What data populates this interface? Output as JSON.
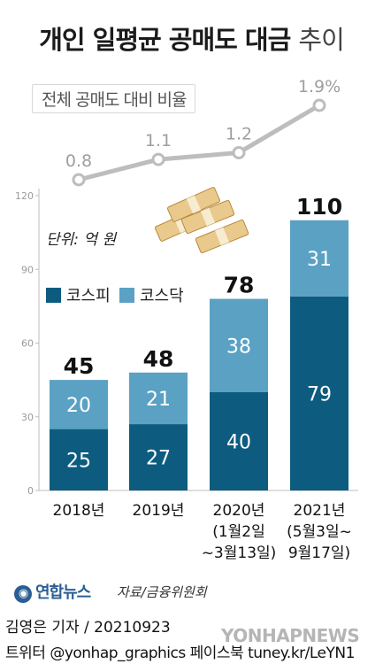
{
  "title": {
    "bold": "개인 일평균 공매도 대금",
    "light": "추이"
  },
  "ratio_label": "전체 공매도 대비 비율",
  "unit": "단위: 억 원",
  "source": "자료/금융위원회",
  "byline": "김영은 기자 / 20210923",
  "social": "트위터 @yonhap_graphics  페이스북 tuney.kr/LeYN1",
  "logo_text": "연합뉴스",
  "watermark": "YONHAPNEWS",
  "colors": {
    "kospi": "#0d5c80",
    "kosdaq": "#5aa1c4",
    "line": "#bdbdbd",
    "axis": "#bdbdbd",
    "tick": "#9a9a9a"
  },
  "chart_data": {
    "type": "bar",
    "stacked": true,
    "categories": [
      [
        "2018년"
      ],
      [
        "2019년"
      ],
      [
        "2020년",
        "(1월2일",
        "~3월13일)"
      ],
      [
        "2021년",
        "(5월3일~",
        "9월17일)"
      ]
    ],
    "series": [
      {
        "name": "코스피",
        "values": [
          25,
          27,
          40,
          79
        ]
      },
      {
        "name": "코스닥",
        "values": [
          20,
          21,
          38,
          31
        ]
      }
    ],
    "totals": [
      45,
      48,
      78,
      110
    ],
    "ylim": [
      0,
      120
    ],
    "yticks": [
      0,
      30,
      60,
      90,
      120
    ],
    "legend": "top-left",
    "line_series": {
      "name": "전체 공매도 대비 비율",
      "values": [
        0.8,
        1.1,
        1.2,
        1.9
      ],
      "labels": [
        "0.8",
        "1.1",
        "1.2",
        "1.9%"
      ]
    }
  }
}
